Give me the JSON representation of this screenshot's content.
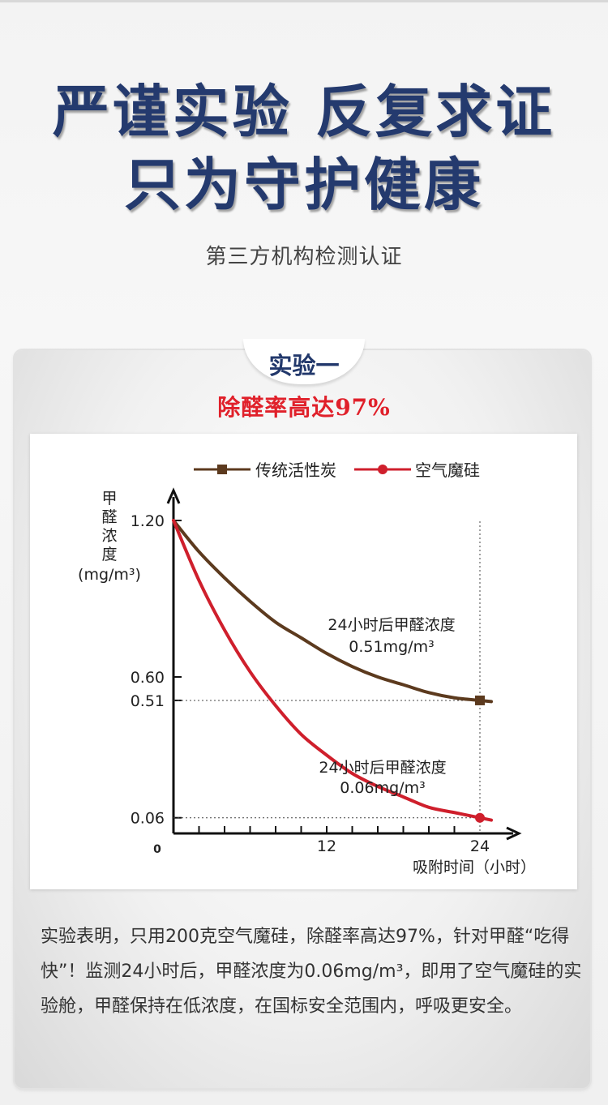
{
  "header": {
    "line1": "严谨实验 反复求证",
    "line2": "只为守护健康",
    "subtitle": "第三方机构检测认证"
  },
  "card": {
    "tab_label": "实验一",
    "rate_text": "除醛率高达97%",
    "description": "实验表明，只用200克空气魔硅，除醛率高达97%，针对甲醛“吃得快”！监测24小时后，甲醛浓度为0.06mg/m³，即用了空气魔硅的实验舱，甲醛保持在低浓度，在国标安全范围内，呼吸更安全。"
  },
  "colors": {
    "title": "#243a6e",
    "accent_red": "#e0202a",
    "series_charcoal": "#5c3a1e",
    "series_silicon": "#cf1f2c"
  },
  "chart_data": {
    "type": "line",
    "ylabel_chars": [
      "甲",
      "醛",
      "浓",
      "度"
    ],
    "yunit": "(mg/m³)",
    "xlabel": "吸附时间（小时）",
    "yticks": [
      "1.20",
      "0.60",
      "0.51",
      "0.06"
    ],
    "xticks": [
      "0",
      "12",
      "24"
    ],
    "xlim": [
      0,
      24
    ],
    "ylim": [
      0,
      1.2
    ],
    "legend_position": "top",
    "series": [
      {
        "name": "传统活性炭",
        "marker": "square",
        "x": [
          0,
          2,
          4,
          6,
          8,
          10,
          12,
          14,
          16,
          18,
          20,
          22,
          24
        ],
        "y": [
          1.2,
          1.08,
          0.98,
          0.89,
          0.81,
          0.75,
          0.69,
          0.64,
          0.6,
          0.57,
          0.54,
          0.52,
          0.51
        ]
      },
      {
        "name": "空气魔硅",
        "marker": "circle",
        "x": [
          0,
          2,
          4,
          6,
          8,
          10,
          12,
          14,
          16,
          18,
          20,
          22,
          24
        ],
        "y": [
          1.2,
          0.97,
          0.78,
          0.62,
          0.49,
          0.38,
          0.3,
          0.23,
          0.18,
          0.14,
          0.1,
          0.08,
          0.06
        ]
      }
    ],
    "annotations": [
      {
        "line1": "24小时后甲醛浓度",
        "line2": "0.51mg/m³"
      },
      {
        "line1": "24小时后甲醛浓度",
        "line2": "0.06mg/m³"
      }
    ]
  }
}
